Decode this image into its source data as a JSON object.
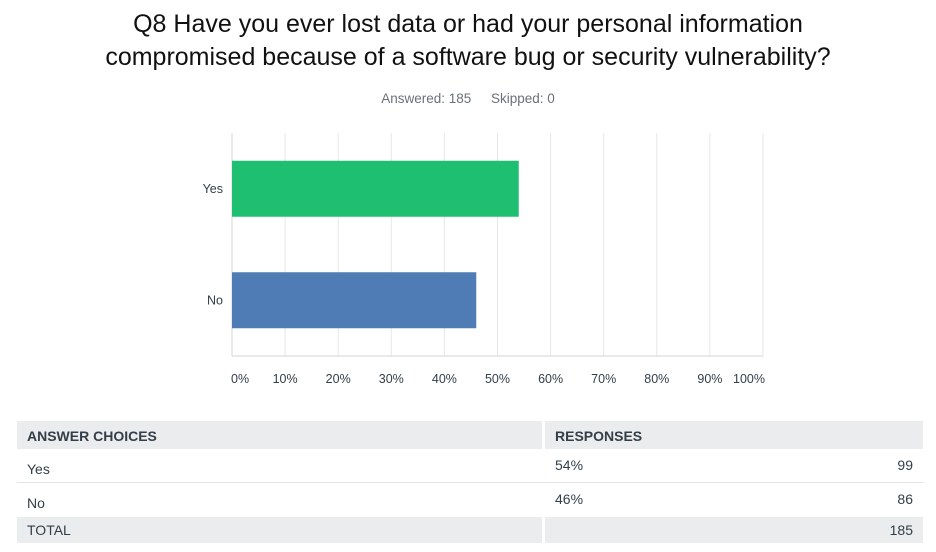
{
  "question": {
    "title_line1": "Q8 Have you ever lost data or had your personal information",
    "title_line2": "compromised because of a software bug or security vulnerability?",
    "answered": "Answered: 185",
    "skipped": "Skipped: 0"
  },
  "chart_data": {
    "type": "bar",
    "orientation": "horizontal",
    "categories": [
      "Yes",
      "No"
    ],
    "values": [
      54,
      46
    ],
    "colors": [
      "#1fbf72",
      "#507cb6"
    ],
    "xlim": [
      0,
      100
    ],
    "x_ticks": [
      "0%",
      "10%",
      "20%",
      "30%",
      "40%",
      "50%",
      "60%",
      "70%",
      "80%",
      "90%",
      "100%"
    ],
    "grid": true
  },
  "table": {
    "headers": [
      "ANSWER CHOICES",
      "RESPONSES"
    ],
    "rows": [
      {
        "choice": "Yes",
        "percent": "54%",
        "count": "99"
      },
      {
        "choice": "No",
        "percent": "46%",
        "count": "86"
      }
    ],
    "total_label": "TOTAL",
    "total_count": "185"
  }
}
